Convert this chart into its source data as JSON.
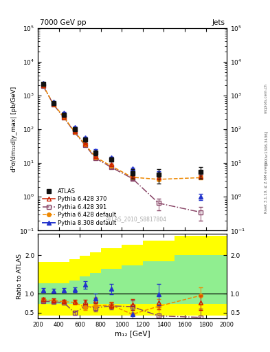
{
  "title_top": "7000 GeV pp",
  "title_right": "Jets",
  "ylabel_main": "d²σ/dm₁₂d|y_max| [pb/GeV]",
  "ylabel_ratio": "Ratio to ATLAS",
  "xlabel": "m₁₂ [GeV]",
  "watermark": "ATLAS_2010_S8817804",
  "right_label": "Rivet 3.1.10, ≥ 2.6M events",
  "arxiv_label": "[arXiv:1306.3436]",
  "mcplots_label": "mcplots.cern.ch",
  "x_edges": [
    200,
    300,
    400,
    500,
    600,
    700,
    800,
    1000,
    1200,
    1500,
    2000
  ],
  "x_centers": [
    250,
    350,
    450,
    550,
    650,
    750,
    900,
    1100,
    1350,
    1750
  ],
  "atlas_y": [
    2200,
    600,
    270,
    100,
    50,
    20,
    13,
    5.0,
    4.5,
    5.5
  ],
  "atlas_yerr": [
    200,
    60,
    27,
    10,
    6,
    3,
    2,
    1.5,
    2.0,
    2.0
  ],
  "p6_370_y": [
    2050,
    570,
    235,
    88,
    38,
    16,
    9.0,
    4.2,
    3.8,
    4.0
  ],
  "p6_370_yerr": [
    50,
    15,
    8,
    3,
    2,
    1,
    0.5,
    0.3,
    0.3,
    0.4
  ],
  "p6_391_y": [
    1950,
    540,
    220,
    82,
    34,
    14,
    7.5,
    3.5,
    0.65,
    0.35
  ],
  "p6_391_yerr": [
    50,
    14,
    7,
    3,
    2,
    1,
    0.5,
    0.3,
    0.25,
    0.15
  ],
  "p6_def_y": [
    2000,
    555,
    228,
    85,
    36,
    15,
    8.2,
    3.8,
    3.3,
    3.7
  ],
  "p6_def_yerr": [
    50,
    14,
    7,
    3,
    2,
    1,
    0.5,
    0.3,
    0.3,
    0.4
  ],
  "p8_def_y": [
    2350,
    670,
    310,
    115,
    58,
    24,
    14.5,
    6.8,
    5.2,
    1.0
  ],
  "p8_def_yerr": [
    60,
    17,
    10,
    4,
    3,
    1.5,
    0.8,
    0.5,
    0.5,
    0.2
  ],
  "ratio_p6_370": [
    0.85,
    0.83,
    0.8,
    0.79,
    0.78,
    0.82,
    0.7,
    0.72,
    0.77,
    0.76
  ],
  "ratio_p6_370_err": [
    0.04,
    0.04,
    0.04,
    0.05,
    0.06,
    0.07,
    0.07,
    0.14,
    0.18,
    0.18
  ],
  "ratio_p6_391": [
    0.8,
    0.79,
    0.76,
    0.5,
    0.67,
    0.63,
    0.68,
    0.66,
    0.42,
    0.38
  ],
  "ratio_p6_391_err": [
    0.04,
    0.04,
    0.04,
    0.06,
    0.07,
    0.09,
    0.09,
    0.16,
    0.22,
    0.22
  ],
  "ratio_p6_def": [
    0.84,
    0.82,
    0.79,
    0.77,
    0.64,
    0.68,
    0.7,
    0.46,
    0.67,
    0.95
  ],
  "ratio_p6_def_err": [
    0.04,
    0.04,
    0.04,
    0.05,
    0.06,
    0.08,
    0.08,
    0.14,
    0.18,
    0.22
  ],
  "ratio_p8_def": [
    1.09,
    1.08,
    1.09,
    1.1,
    1.23,
    0.88,
    1.12,
    0.46,
    0.98,
    0.12
  ],
  "ratio_p8_def_err": [
    0.05,
    0.05,
    0.05,
    0.06,
    0.1,
    0.12,
    0.13,
    0.22,
    0.28,
    0.14
  ],
  "band_yellow_lo": [
    0.42,
    0.42,
    0.42,
    0.42,
    0.42,
    0.42,
    0.42,
    0.42,
    0.42,
    0.42
  ],
  "band_yellow_hi": [
    1.82,
    1.82,
    1.82,
    1.9,
    1.98,
    2.08,
    2.18,
    2.28,
    2.38,
    2.5
  ],
  "band_green_lo": [
    0.73,
    0.73,
    0.73,
    0.73,
    0.73,
    0.73,
    0.73,
    0.73,
    0.73,
    0.73
  ],
  "band_green_hi": [
    1.27,
    1.27,
    1.27,
    1.35,
    1.44,
    1.54,
    1.64,
    1.74,
    1.84,
    2.0
  ],
  "color_p6_370": "#cc2200",
  "color_p6_391": "#884466",
  "color_p6_def": "#ee8800",
  "color_p8_def": "#2233cc",
  "color_atlas": "#111111",
  "xlim": [
    200,
    2000
  ],
  "ylim_main": [
    0.1,
    100000
  ],
  "ylim_ratio": [
    0.35,
    2.55
  ],
  "ratio_yticks": [
    0.5,
    1.0,
    2.0
  ]
}
